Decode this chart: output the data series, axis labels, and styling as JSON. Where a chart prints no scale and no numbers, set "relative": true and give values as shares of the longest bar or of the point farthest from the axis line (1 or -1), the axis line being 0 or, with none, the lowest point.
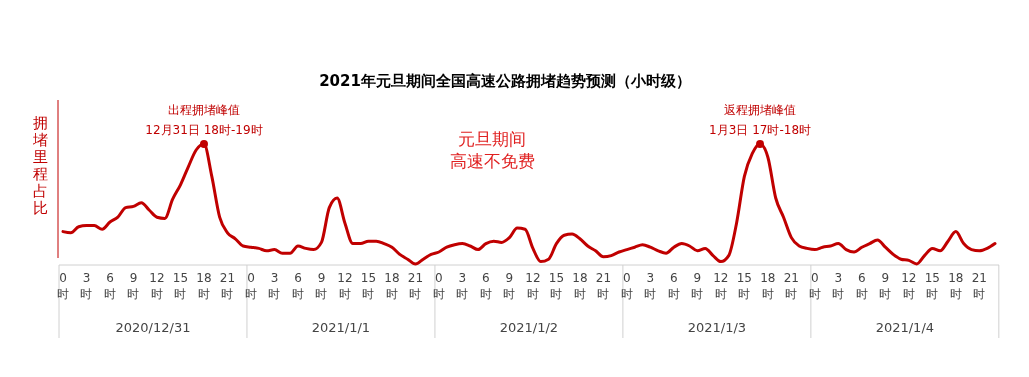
{
  "chart_data": {
    "type": "line",
    "title": "2021年元旦期间全国高速公路拥堵趋势预测（小时级）",
    "ylabel": "拥堵里程占比",
    "relative": true,
    "categories": [
      "0时",
      null,
      null,
      "3时",
      null,
      null,
      "6时",
      null,
      null,
      "9时",
      null,
      null,
      "12时",
      null,
      null,
      "15时",
      null,
      null,
      "18时",
      null,
      null,
      "21时",
      null,
      null,
      "0时",
      null,
      null,
      "3时",
      null,
      null,
      "6时",
      null,
      null,
      "9时",
      null,
      null,
      "12时",
      null,
      null,
      "15时",
      null,
      null,
      "18时",
      null,
      null,
      "21时",
      null,
      null,
      "0时",
      null,
      null,
      "3时",
      null,
      null,
      "6时",
      null,
      null,
      "9时",
      null,
      null,
      "12时",
      null,
      null,
      "15时",
      null,
      null,
      "18时",
      null,
      null,
      "21时",
      null,
      null,
      "0时",
      null,
      null,
      "3时",
      null,
      null,
      "6时",
      null,
      null,
      "9时",
      null,
      null,
      "12时",
      null,
      null,
      "15时",
      null,
      null,
      "18时",
      null,
      null,
      "21时",
      null,
      null,
      "0时",
      null,
      null,
      "3时",
      null,
      null,
      "6时",
      null,
      null,
      "9时",
      null,
      null,
      "12时",
      null,
      null,
      "15时",
      null,
      null,
      "18时",
      null,
      null,
      "21时",
      null,
      null
    ],
    "series": [
      {
        "color": "#c00000",
        "values": [
          0.27,
          0.26,
          0.31,
          0.32,
          0.32,
          0.29,
          0.35,
          0.39,
          0.47,
          0.48,
          0.51,
          0.45,
          0.39,
          0.38,
          0.54,
          0.66,
          0.81,
          0.95,
          1.0,
          0.73,
          0.39,
          0.26,
          0.21,
          0.15,
          0.14,
          0.13,
          0.11,
          0.12,
          0.09,
          0.09,
          0.15,
          0.13,
          0.12,
          0.18,
          0.47,
          0.55,
          0.34,
          0.17,
          0.17,
          0.19,
          0.19,
          0.17,
          0.14,
          0.08,
          0.04,
          0.0,
          0.04,
          0.08,
          0.1,
          0.14,
          0.16,
          0.17,
          0.15,
          0.12,
          0.17,
          0.19,
          0.18,
          0.22,
          0.3,
          0.29,
          0.13,
          0.02,
          0.04,
          0.17,
          0.24,
          0.25,
          0.21,
          0.15,
          0.11,
          0.06,
          0.07,
          0.1,
          0.12,
          0.14,
          0.16,
          0.14,
          0.11,
          0.09,
          0.14,
          0.17,
          0.15,
          0.11,
          0.13,
          0.07,
          0.02,
          0.07,
          0.34,
          0.73,
          0.92,
          1.0,
          0.89,
          0.55,
          0.39,
          0.22,
          0.15,
          0.13,
          0.12,
          0.14,
          0.15,
          0.17,
          0.12,
          0.1,
          0.14,
          0.17,
          0.2,
          0.14,
          0.08,
          0.04,
          0.03,
          0.0,
          0.07,
          0.13,
          0.11,
          0.19,
          0.27,
          0.17,
          0.12,
          0.11,
          0.13,
          0.17
        ]
      }
    ],
    "annotations": [
      "出程拥堵峰值",
      "12月31日 18时-19时",
      "返程拥堵峰值",
      "1月3日 17时-18时",
      "元旦期间",
      "高速不免费",
      "2020/12/31",
      "2021/1/1",
      "2021/1/2",
      "2021/1/3",
      "2021/1/4"
    ],
    "marker": "none",
    "line_style": "solid"
  }
}
